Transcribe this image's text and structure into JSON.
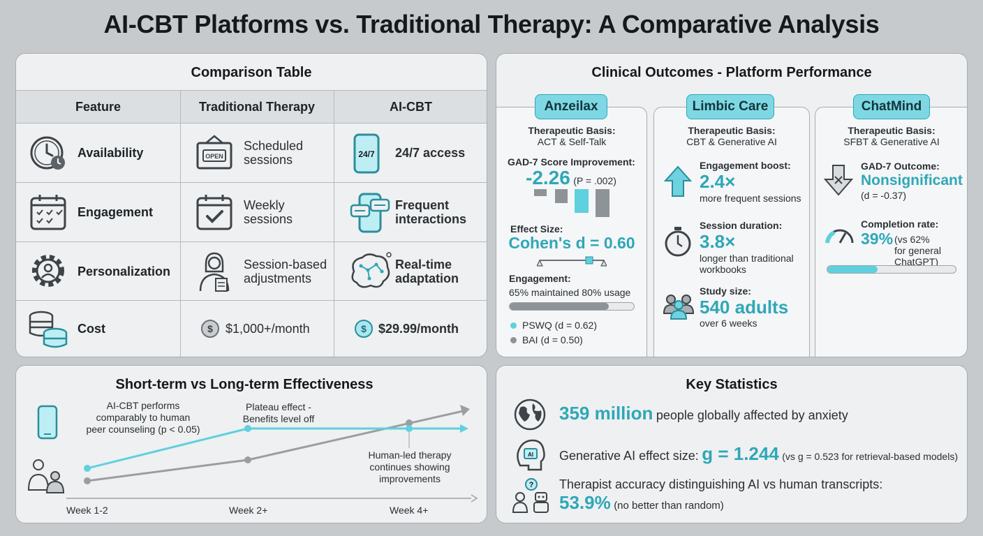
{
  "title": "AI-CBT Platforms vs. Traditional Therapy: A Comparative Analysis",
  "comparison": {
    "heading": "Comparison Table",
    "columns": [
      "Feature",
      "Traditional Therapy",
      "AI-CBT"
    ],
    "rows": [
      {
        "feature": "Availability",
        "traditional": [
          "Scheduled",
          "sessions"
        ],
        "traditional_icon": "open-sign-icon",
        "ai": [
          "24/7 access"
        ],
        "ai_icon": "phone-24-7-icon",
        "feature_icon": "clock-icon"
      },
      {
        "feature": "Engagement",
        "traditional": [
          "Weekly",
          "sessions"
        ],
        "traditional_icon": "calendar-check-icon",
        "ai": [
          "Frequent",
          "interactions"
        ],
        "ai_icon": "chat-phone-icon",
        "feature_icon": "calendar-icon"
      },
      {
        "feature": "Personalization",
        "traditional": [
          "Session-based",
          "adjustments"
        ],
        "traditional_icon": "therapist-icon",
        "ai": [
          "Real-time",
          "adaptation"
        ],
        "ai_icon": "brain-icon",
        "feature_icon": "gear-person-icon"
      },
      {
        "feature": "Cost",
        "traditional": [
          "$1,000+/month"
        ],
        "traditional_icon": "dollar-coin-icon",
        "ai": [
          "$29.99/month"
        ],
        "ai_icon": "dollar-coin-icon",
        "feature_icon": "coin-stack-icon"
      }
    ]
  },
  "outcomes": {
    "heading": "Clinical Outcomes - Platform Performance",
    "anzeilax": {
      "name": "Anzeilax",
      "basis_label": "Therapeutic Basis:",
      "basis": "ACT & Self-Talk",
      "gad_label": "GAD-7 Score Improvement:",
      "gad_value": "-2.26",
      "gad_p": "(P = .002)",
      "effect_label": "Effect Size:",
      "effect_value": "Cohen's d = 0.60",
      "engagement_label": "Engagement:",
      "engagement_text": "65% maintained 80% usage",
      "engagement_progress": 0.8,
      "legend": [
        "PSWQ (d = 0.62)",
        "BAI (d = 0.50)"
      ]
    },
    "limbic": {
      "name": "Limbic Care",
      "basis_label": "Therapeutic Basis:",
      "basis": "CBT & Generative AI",
      "boost_label": "Engagement boost:",
      "boost_value": "2.4×",
      "boost_text": "more frequent sessions",
      "duration_label": "Session duration:",
      "duration_value": "3.8×",
      "duration_text": [
        "longer than traditional",
        "workbooks"
      ],
      "study_label": "Study size:",
      "study_value": "540 adults",
      "study_text": "over 6 weeks"
    },
    "chatmind": {
      "name": "ChatMind",
      "basis_label": "Therapeutic Basis:",
      "basis": "SFBT & Generative AI",
      "gad_label": "GAD-7 Outcome:",
      "gad_value": "Nonsignificant",
      "gad_d": "(d = -0.37)",
      "completion_label": "Completion rate:",
      "completion_value": "39%",
      "completion_text": [
        "(vs 62%",
        "for general ChatGPT)"
      ],
      "completion_progress": 0.39
    }
  },
  "effectiveness": {
    "heading": "Short-term vs Long-term Effectiveness",
    "note1": [
      "AI-CBT performs",
      "comparably to human",
      "peer counseling (p < 0.05)"
    ],
    "note2": [
      "Plateau effect -",
      "Benefits level off"
    ],
    "note3": [
      "Human-led therapy",
      "continues showing",
      "improvements"
    ],
    "x_labels": [
      "Week 1-2",
      "Week 2+",
      "Week 4+"
    ],
    "colors": {
      "ai": "#5fd0de",
      "human": "#9a9ea2"
    }
  },
  "stats": {
    "heading": "Key Statistics",
    "s1_value": "359 million",
    "s1_text": "people globally affected by anxiety",
    "s2_text": "Generative AI effect size:",
    "s2_value": "g = 1.244",
    "s2_note": "(vs g = 0.523 for retrieval-based models)",
    "s3_text": "Therapist accuracy distinguishing AI vs human transcripts:",
    "s3_value": "53.9%",
    "s3_note": "(no better than random)"
  }
}
